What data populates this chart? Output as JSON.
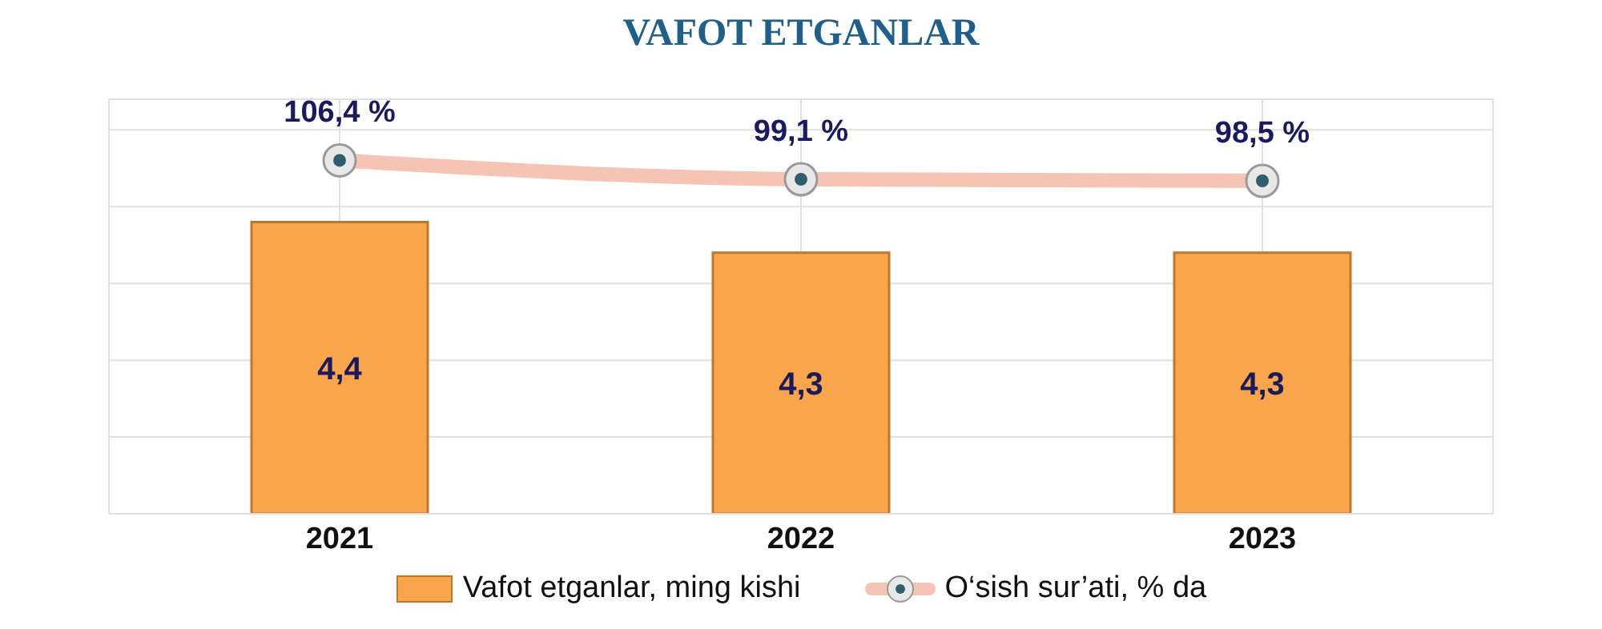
{
  "chart_data": {
    "type": "bar",
    "title": "VAFOT ETGANLAR",
    "categories": [
      "2021",
      "2022",
      "2023"
    ],
    "series": [
      {
        "name": "Vafot etganlar, ming kishi",
        "color": "#f9a54b",
        "values": [
          4.4,
          4.3,
          4.3
        ],
        "value_labels": [
          "4,4",
          "4,3",
          "4,3"
        ]
      },
      {
        "name": "O‘sish sur’ati, % da",
        "type": "line",
        "axis": "y2",
        "color": "#f6c4b4",
        "marker": "circle",
        "values": [
          106.4,
          99.1,
          98.5
        ],
        "value_labels": [
          "106,4 %",
          "99,1 %",
          "98,5 %"
        ]
      }
    ],
    "ylim": [
      3.45,
      4.8
    ],
    "yticks": [
      {
        "value": 3.45,
        "label": null
      },
      {
        "value": 3.7,
        "label": null
      },
      {
        "value": 3.95,
        "label": null
      },
      {
        "value": 4.2,
        "label": null
      },
      {
        "value": 4.45,
        "label": null
      },
      {
        "value": 4.7,
        "label": null
      }
    ],
    "y2lim": [
      -30,
      130
    ],
    "tick_labels": "x",
    "grid": true,
    "legend": "bottom",
    "data_labels": true
  }
}
